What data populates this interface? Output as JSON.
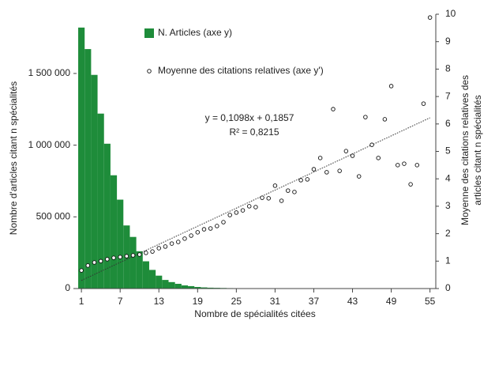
{
  "chart_data": {
    "type": "combo",
    "x_label": "Nombre de spécialités citées",
    "y_label": "Nombre d'articles citant n spécialités",
    "y2_label": [
      "Moyenne des citations relatives des",
      "articles citant n spécialités"
    ],
    "annotations": [
      "y = 0,1098x + 0,1857",
      "R² = 0,8215"
    ],
    "trendline": {
      "slope": 0.1098,
      "intercept": 0.1857,
      "axis": "y2"
    },
    "x": [
      1,
      2,
      3,
      4,
      5,
      6,
      7,
      8,
      9,
      10,
      11,
      12,
      13,
      14,
      15,
      16,
      17,
      18,
      19,
      20,
      21,
      22,
      23,
      24,
      25,
      26,
      27,
      28,
      29,
      30,
      31,
      32,
      33,
      34,
      35,
      36,
      37,
      38,
      39,
      40,
      41,
      42,
      43,
      44,
      45,
      46,
      47,
      48,
      49,
      50,
      51,
      52,
      53,
      54,
      55
    ],
    "series": [
      {
        "name": "N. Articles (axe y)",
        "type": "bar",
        "color": "#1e8c3a",
        "values": [
          1820000,
          1670000,
          1490000,
          1220000,
          1010000,
          790000,
          620000,
          440000,
          360000,
          260000,
          190000,
          130000,
          90000,
          60000,
          45000,
          33000,
          22000,
          17000,
          11000,
          8000,
          6000,
          5000,
          4000,
          3000,
          2000,
          2000,
          1000,
          0,
          0,
          0,
          0,
          0,
          0,
          0,
          0,
          0,
          0,
          0,
          0,
          0,
          0,
          0,
          0,
          0,
          0,
          0,
          0,
          0,
          0,
          0,
          0,
          0,
          0,
          0,
          0
        ]
      },
      {
        "name": "Moyenne des citations relatives (axe y')",
        "type": "scatter",
        "axis": "y2",
        "color": "#111111",
        "values": [
          0.66,
          0.84,
          0.95,
          1.0,
          1.07,
          1.12,
          1.15,
          1.18,
          1.21,
          1.24,
          1.3,
          1.35,
          1.47,
          1.53,
          1.64,
          1.7,
          1.82,
          1.93,
          2.05,
          2.16,
          2.19,
          2.28,
          2.42,
          2.68,
          2.77,
          2.85,
          3.0,
          2.97,
          3.31,
          3.29,
          3.75,
          3.2,
          3.57,
          3.52,
          3.95,
          3.98,
          4.35,
          4.76,
          4.24,
          6.54,
          4.29,
          5.01,
          4.84,
          4.09,
          6.25,
          5.24,
          4.76,
          6.17,
          7.38,
          4.5,
          4.55,
          3.8,
          4.5,
          6.74,
          9.88
        ]
      }
    ],
    "xlim": [
      0.25,
      55.9
    ],
    "xticks": [
      1,
      7,
      13,
      19,
      25,
      31,
      37,
      43,
      49,
      55
    ],
    "ylim": [
      0,
      1913000
    ],
    "yticks": [
      0,
      {
        "value": 500000,
        "label": "500 000"
      },
      {
        "value": 1000000,
        "label": "1 000 000"
      },
      {
        "value": 1500000,
        "label": "1 500 000"
      }
    ],
    "y2lim": [
      0,
      10
    ],
    "y2ticks": [
      0,
      1,
      2,
      3,
      4,
      5,
      6,
      7,
      8,
      9,
      10
    ]
  }
}
